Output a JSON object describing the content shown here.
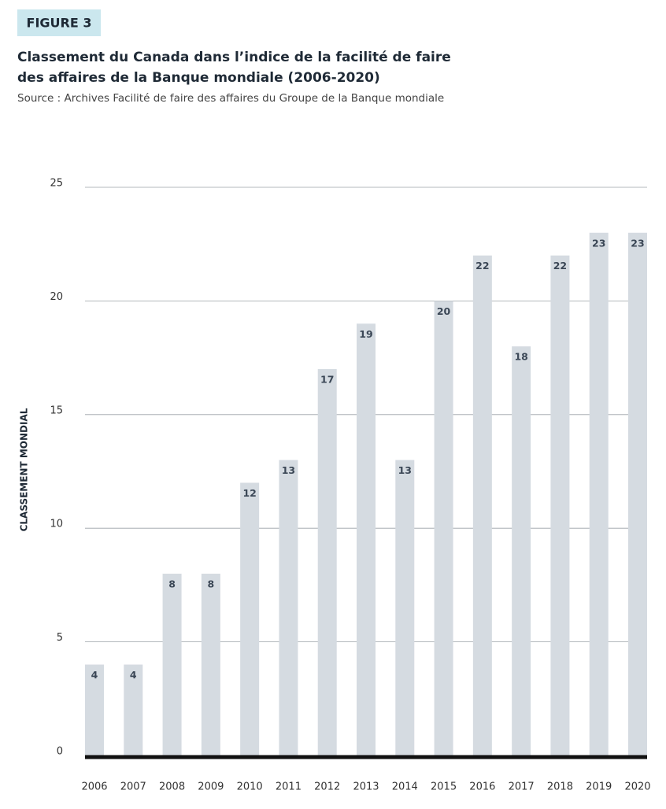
{
  "chart_data": {
    "type": "bar",
    "figure_label": "FIGURE 3",
    "title_lines": [
      "Classement du Canada dans l’indice de la facilité de faire",
      "des affaires de la Banque mondiale (2006-2020)"
    ],
    "subtitle": "Source : Archives Facilité de faire des affaires du Groupe de la Banque mondiale",
    "y_label": "CLASSEMENT MONDIAL",
    "categories": [
      "2006",
      "2007",
      "2008",
      "2009",
      "2010",
      "2011",
      "2012",
      "2013",
      "2014",
      "2015",
      "2016",
      "2017",
      "2018",
      "2019",
      "2020"
    ],
    "values": [
      4,
      4,
      8,
      8,
      12,
      13,
      17,
      19,
      13,
      20,
      22,
      18,
      22,
      23,
      23
    ],
    "color": "#d5dbe1",
    "ylim": [
      0,
      25
    ],
    "yticks": [
      0,
      5,
      10,
      15,
      20,
      25
    ],
    "grid": true
  }
}
